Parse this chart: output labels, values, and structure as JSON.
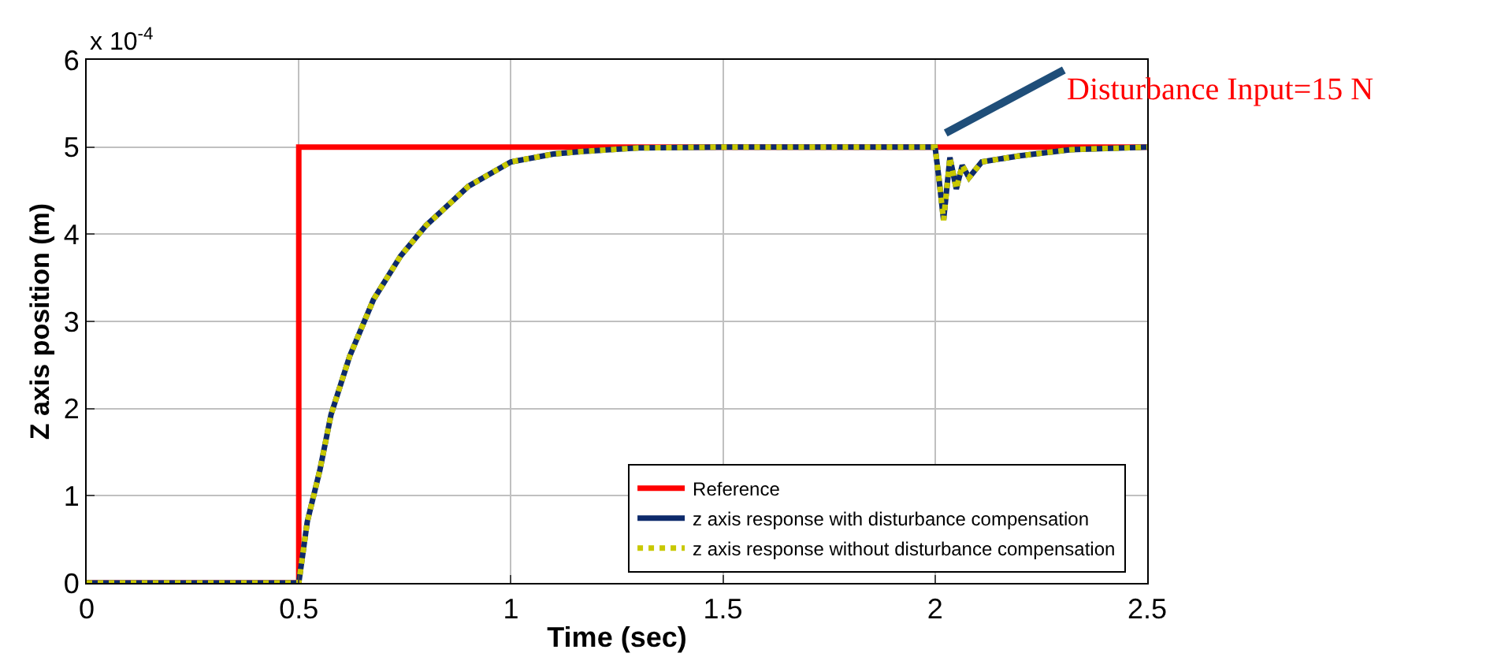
{
  "chart_data": {
    "type": "line",
    "xlabel": "Time (sec)",
    "ylabel": "Z axis position (m)",
    "xlim": [
      0,
      2.5
    ],
    "ylim": [
      0,
      6
    ],
    "xticks": [
      0,
      0.5,
      1,
      1.5,
      2,
      2.5
    ],
    "yticks": [
      0,
      1,
      2,
      3,
      4,
      5,
      6
    ],
    "grid": true,
    "legend": "bottom right",
    "marker": "none",
    "annotations": [
      "x 10$^{-4}$",
      "Disturbance Input=15 N"
    ],
    "series": [
      {
        "name": "Reference",
        "type": "step",
        "color": "#ff0000",
        "line_style": "solid",
        "x": [
          0,
          0.5,
          2.5
        ],
        "values": [
          0,
          5,
          5
        ]
      },
      {
        "name": "z axis response with disturbance compensation",
        "color": "#0d2a6b",
        "line_style": "solid",
        "x": [
          0,
          0.5,
          0.52,
          0.55,
          0.576,
          0.62,
          0.676,
          0.74,
          0.8,
          0.9,
          1.0,
          1.1,
          1.17,
          1.3,
          1.5,
          2.0,
          2.01,
          2.02,
          2.035,
          2.05,
          2.064,
          2.08,
          2.11,
          2.2,
          2.32,
          2.5
        ],
        "values": [
          0,
          0,
          0.7,
          1.3,
          1.93,
          2.6,
          3.25,
          3.75,
          4.1,
          4.55,
          4.83,
          4.92,
          4.95,
          4.99,
          5,
          5,
          4.6,
          4.16,
          4.88,
          4.52,
          4.79,
          4.65,
          4.83,
          4.9,
          4.97,
          5
        ]
      },
      {
        "name": "z axis response without disturbance compensation",
        "color": "#c8c800",
        "line_style": "dotted",
        "x": [
          0,
          0.5,
          0.52,
          0.55,
          0.576,
          0.62,
          0.676,
          0.74,
          0.8,
          0.9,
          1.0,
          1.1,
          1.17,
          1.3,
          1.5,
          2.0,
          2.01,
          2.02,
          2.035,
          2.05,
          2.064,
          2.08,
          2.11,
          2.2,
          2.32,
          2.5
        ],
        "values": [
          0,
          0,
          0.7,
          1.3,
          1.93,
          2.6,
          3.25,
          3.75,
          4.1,
          4.55,
          4.83,
          4.92,
          4.95,
          4.99,
          5,
          5,
          4.6,
          4.16,
          4.88,
          4.52,
          4.79,
          4.65,
          4.83,
          4.9,
          4.97,
          5
        ]
      }
    ]
  }
}
